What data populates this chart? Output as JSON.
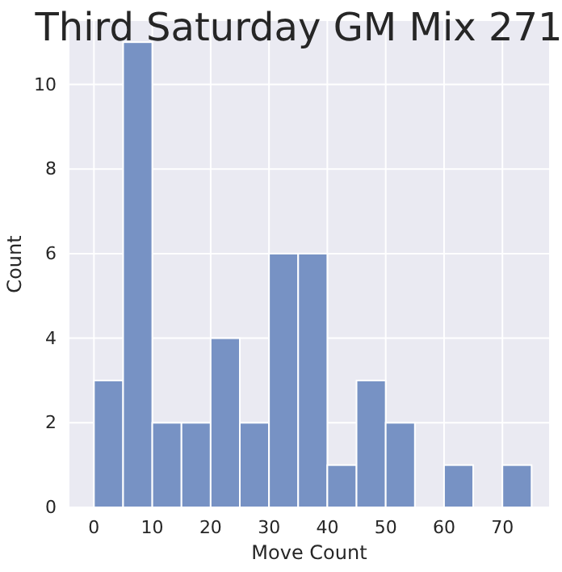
{
  "chart_data": {
    "type": "histogram",
    "title": "Third Saturday GM Mix 271",
    "xlabel": "Move Count",
    "ylabel": "Count",
    "bins": [
      0,
      5,
      10,
      15,
      20,
      25,
      30,
      35,
      40,
      45,
      50,
      55,
      60,
      65,
      70,
      75
    ],
    "values": [
      3,
      11,
      2,
      2,
      4,
      2,
      6,
      6,
      1,
      3,
      2,
      0,
      1,
      0,
      1
    ],
    "color": "#7792c4",
    "xlim": [
      -4.2,
      78
    ],
    "ylim": [
      0,
      11.5
    ],
    "xticks": [
      0,
      10,
      20,
      30,
      40,
      50,
      60,
      70
    ],
    "yticks": [
      0,
      2,
      4,
      6,
      8,
      10
    ],
    "grid": true
  }
}
